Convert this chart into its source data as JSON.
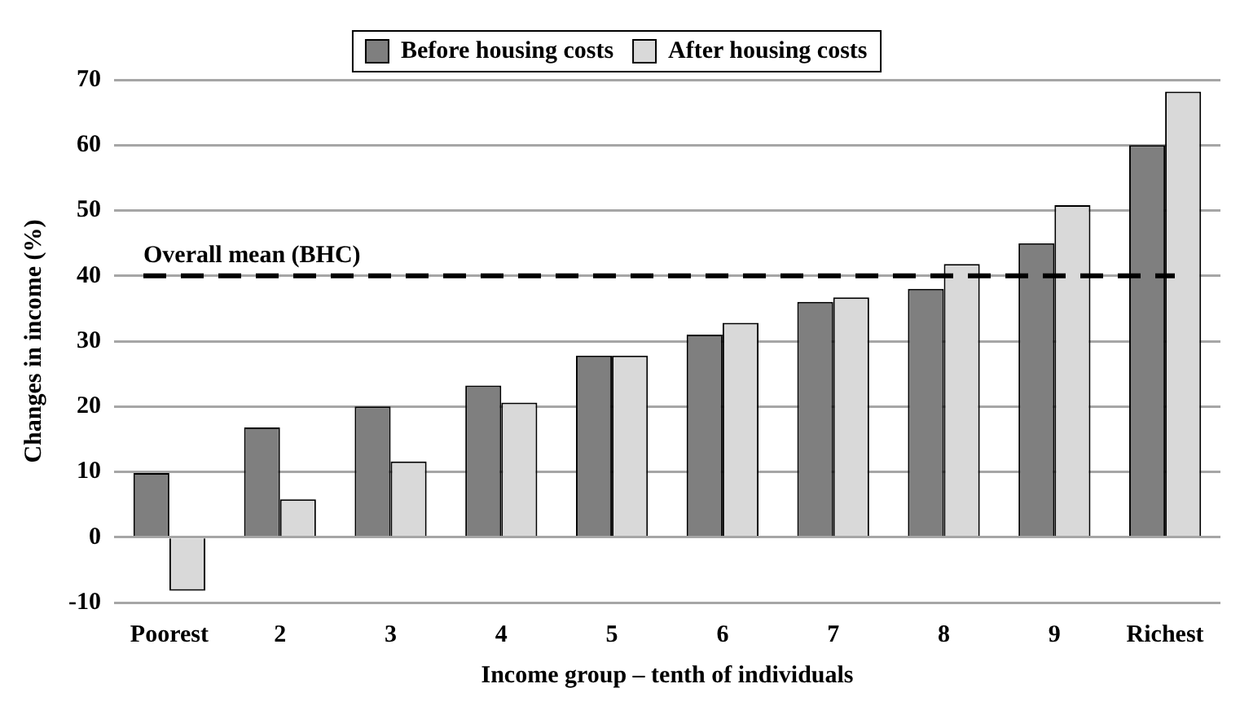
{
  "chart_data": {
    "type": "bar",
    "xlabel": "Income group – tenth of individuals",
    "ylabel": "Changes in income (%)",
    "categories": [
      "Poorest",
      "2",
      "3",
      "4",
      "5",
      "6",
      "7",
      "8",
      "9",
      "Richest"
    ],
    "series": [
      {
        "name": "Before housing costs",
        "color": "#7f7f7f",
        "values": [
          9.8,
          16.8,
          20,
          23.2,
          27.8,
          31,
          36,
          38,
          45,
          60
        ]
      },
      {
        "name": "After housing costs",
        "color": "#d9d9d9",
        "values": [
          -8.2,
          5.8,
          11.6,
          20.6,
          27.8,
          32.8,
          36.7,
          41.8,
          50.8,
          68.2
        ]
      }
    ],
    "ylim": [
      -10,
      70
    ],
    "yticks": [
      -10,
      0,
      10,
      20,
      30,
      40,
      50,
      60,
      70
    ],
    "ref_lines": [
      {
        "axis": "y",
        "value": 40,
        "label": "Overall mean (BHC)",
        "color": "#000000",
        "line_style": "dashed"
      }
    ],
    "grid": "y",
    "legend": "top"
  }
}
